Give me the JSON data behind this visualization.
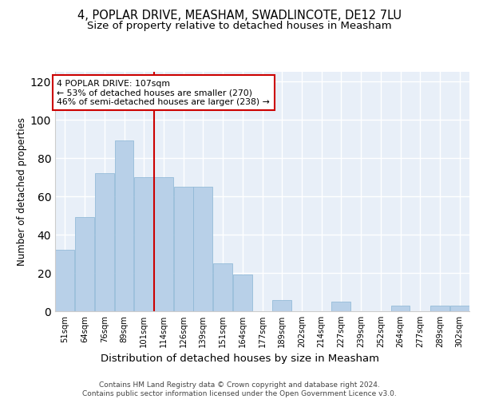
{
  "title": "4, POPLAR DRIVE, MEASHAM, SWADLINCOTE, DE12 7LU",
  "subtitle": "Size of property relative to detached houses in Measham",
  "xlabel": "Distribution of detached houses by size in Measham",
  "ylabel": "Number of detached properties",
  "bar_labels": [
    "51sqm",
    "64sqm",
    "76sqm",
    "89sqm",
    "101sqm",
    "114sqm",
    "126sqm",
    "139sqm",
    "151sqm",
    "164sqm",
    "177sqm",
    "189sqm",
    "202sqm",
    "214sqm",
    "227sqm",
    "239sqm",
    "252sqm",
    "264sqm",
    "277sqm",
    "289sqm",
    "302sqm"
  ],
  "bar_values": [
    32,
    49,
    72,
    89,
    70,
    70,
    65,
    65,
    25,
    19,
    0,
    6,
    0,
    0,
    5,
    0,
    0,
    3,
    0,
    3,
    3
  ],
  "bar_color": "#b8d0e8",
  "bar_edge_color": "#8ab4d4",
  "background_color": "#e8eff8",
  "grid_color": "#ffffff",
  "vline_x_index": 4,
  "vline_color": "#cc0000",
  "annotation_text": "4 POPLAR DRIVE: 107sqm\n← 53% of detached houses are smaller (270)\n46% of semi-detached houses are larger (238) →",
  "annotation_box_edgecolor": "#cc0000",
  "annotation_box_facecolor": "#ffffff",
  "ylim": [
    0,
    125
  ],
  "yticks": [
    0,
    20,
    40,
    60,
    80,
    100,
    120
  ],
  "title_fontsize": 10.5,
  "subtitle_fontsize": 9.5,
  "xlabel_fontsize": 9.5,
  "ylabel_fontsize": 8.5,
  "footer_text": "Contains HM Land Registry data © Crown copyright and database right 2024.\nContains public sector information licensed under the Open Government Licence v3.0.",
  "footer_fontsize": 6.5
}
